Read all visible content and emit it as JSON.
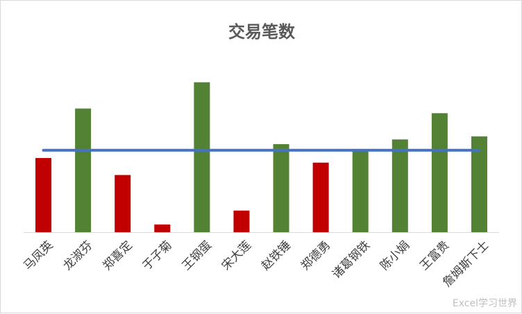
{
  "chart_data": {
    "type": "bar",
    "title": "交易笔数",
    "xlabel": "",
    "ylabel": "",
    "ylim": [
      0,
      100
    ],
    "grid": false,
    "legend": "none",
    "categories": [
      "马凤英",
      "龙淑芬",
      "郑喜定",
      "于子菊",
      "王钢蛋",
      "宋大莲",
      "赵铁锤",
      "郑德勇",
      "诸葛钢铁",
      "陈小娟",
      "王富贵",
      "詹姆斯下士"
    ],
    "series": [
      {
        "type": "bar",
        "values": [
          48,
          80,
          37,
          5,
          97,
          14,
          57,
          45,
          53,
          60,
          77,
          62
        ]
      },
      {
        "type": "line",
        "values": [
          53,
          53,
          53,
          53,
          53,
          53,
          53,
          53,
          53,
          53,
          53,
          53
        ]
      }
    ],
    "colors": {
      "above_average": "#548235",
      "below_average": "#c00000",
      "average_line": "#4472c4",
      "axis": "#d9d9d9"
    }
  },
  "watermark": "Excel学习世界"
}
